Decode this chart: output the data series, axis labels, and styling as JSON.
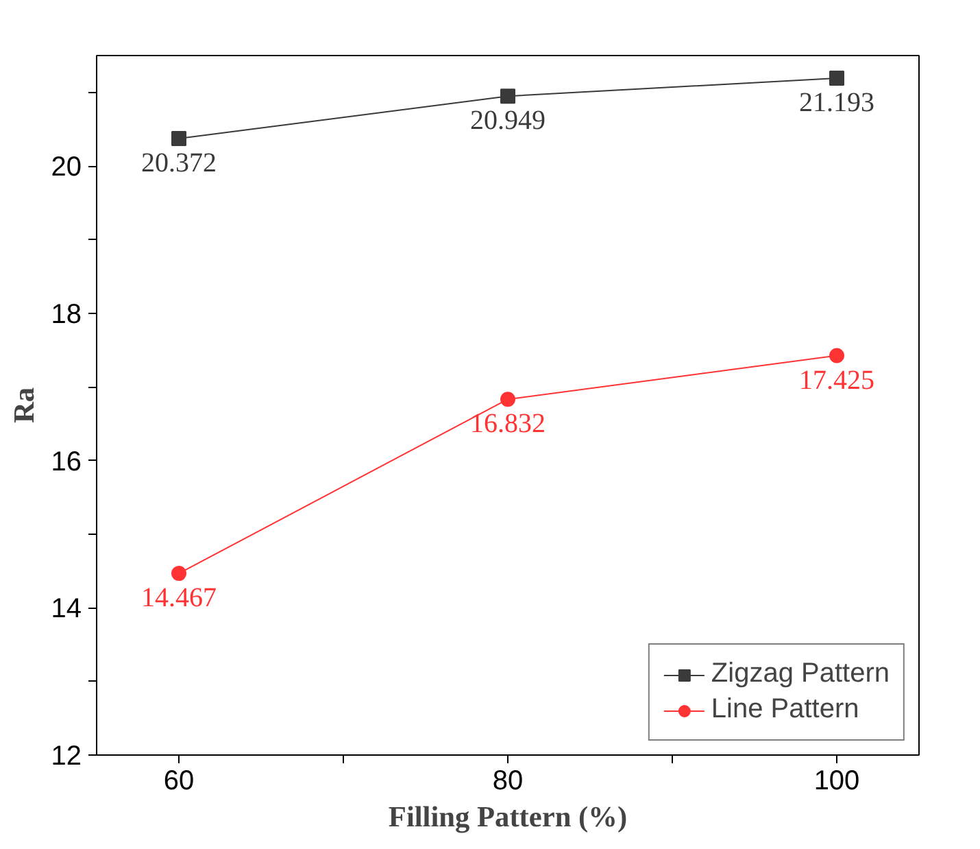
{
  "chart_data": {
    "type": "line",
    "xlabel": "Filling Pattern (%)",
    "ylabel": "Ra",
    "x": [
      60,
      80,
      100
    ],
    "series": [
      {
        "name": "Zigzag Pattern",
        "color": "#3a3a3a",
        "marker": "square",
        "values": [
          20.372,
          20.949,
          21.193
        ]
      },
      {
        "name": "Line Pattern",
        "color": "#ff3333",
        "marker": "circle",
        "values": [
          14.467,
          16.832,
          17.425
        ]
      }
    ],
    "xlim": [
      55,
      105
    ],
    "xticks": [
      60,
      {
        "value": 70,
        "label": null
      },
      80,
      {
        "value": 90,
        "label": null
      },
      100
    ],
    "ylim": [
      12,
      21.5
    ],
    "yticks": [
      12,
      {
        "value": 13,
        "label": null
      },
      14,
      {
        "value": 15,
        "label": null
      },
      16,
      {
        "value": 17,
        "label": null
      },
      18,
      {
        "value": 19,
        "label": null
      },
      20,
      {
        "value": 21,
        "label": null
      }
    ],
    "data_labels": true,
    "legend": "bottom right",
    "grid": false,
    "line_style": "solid"
  }
}
